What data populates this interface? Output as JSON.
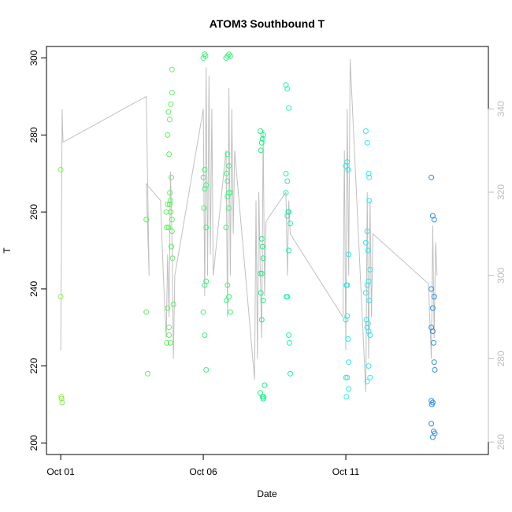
{
  "chart_data": {
    "type": "scatter",
    "title": "ATOM3 Southbound T",
    "xlabel": "Date",
    "ylabel": "T",
    "x_ticks": [
      "Oct 01",
      "Oct 06",
      "Oct 11"
    ],
    "x_tick_days": [
      1,
      6,
      11
    ],
    "xlim_days": [
      0.5,
      16.0
    ],
    "ylim": [
      197,
      303
    ],
    "y_ticks": [
      200,
      220,
      240,
      260,
      280,
      300
    ],
    "y2lim": [
      257,
      355
    ],
    "y2_ticks": [
      260,
      280,
      300,
      320,
      340
    ],
    "y2_color": "#bebebe",
    "series": [
      {
        "color": "#90ee50",
        "points": [
          [
            1.0,
            271
          ],
          [
            1.0,
            238
          ],
          [
            1.02,
            212
          ],
          [
            1.03,
            211.5
          ],
          [
            1.05,
            210.5
          ]
        ]
      },
      {
        "color": "#5ef05e",
        "points": [
          [
            4.0,
            258
          ],
          [
            4.0,
            234
          ],
          [
            4.05,
            218
          ],
          [
            4.75,
            280
          ],
          [
            4.78,
            286
          ],
          [
            4.8,
            275
          ],
          [
            4.7,
            260
          ],
          [
            4.72,
            256
          ],
          [
            4.75,
            235
          ],
          [
            4.8,
            230
          ],
          [
            4.72,
            226
          ],
          [
            4.8,
            228
          ],
          [
            4.85,
            226
          ],
          [
            4.82,
            284
          ],
          [
            4.86,
            288
          ],
          [
            4.9,
            297
          ],
          [
            4.9,
            291
          ],
          [
            4.88,
            269
          ],
          [
            4.85,
            263
          ],
          [
            4.9,
            258
          ],
          [
            4.78,
            256
          ],
          [
            4.82,
            262
          ],
          [
            4.95,
            236
          ],
          [
            4.88,
            251
          ],
          [
            4.92,
            248
          ],
          [
            4.75,
            262
          ],
          [
            4.86,
            260
          ],
          [
            4.9,
            255
          ],
          [
            4.83,
            265
          ]
        ]
      },
      {
        "color": "#3ef07a",
        "points": [
          [
            6.0,
            300
          ],
          [
            6.05,
            301
          ],
          [
            6.08,
            300.5
          ],
          [
            6.05,
            271
          ],
          [
            6.0,
            269
          ],
          [
            6.1,
            267
          ],
          [
            6.05,
            266
          ],
          [
            6.02,
            261
          ],
          [
            6.1,
            256
          ],
          [
            6.05,
            241
          ],
          [
            6.1,
            242
          ],
          [
            6.0,
            234
          ],
          [
            6.05,
            228
          ],
          [
            6.1,
            219
          ],
          [
            6.8,
            300
          ],
          [
            6.85,
            300.5
          ],
          [
            6.9,
            301
          ],
          [
            6.95,
            300.5
          ],
          [
            6.85,
            275
          ],
          [
            6.9,
            272
          ],
          [
            6.82,
            270
          ],
          [
            6.85,
            268
          ],
          [
            6.9,
            265
          ],
          [
            6.95,
            265
          ],
          [
            6.85,
            264
          ],
          [
            6.9,
            261
          ],
          [
            6.8,
            256
          ],
          [
            6.85,
            241
          ],
          [
            6.9,
            238
          ],
          [
            6.82,
            237
          ],
          [
            6.95,
            234
          ]
        ]
      },
      {
        "color": "#22ee88",
        "points": [
          [
            8.0,
            281
          ],
          [
            8.05,
            278
          ],
          [
            8.08,
            279
          ],
          [
            8.1,
            280
          ],
          [
            8.02,
            276
          ],
          [
            8.05,
            253
          ],
          [
            8.08,
            251
          ],
          [
            8.1,
            248
          ],
          [
            8.0,
            244
          ],
          [
            8.05,
            244
          ],
          [
            8.02,
            239
          ],
          [
            8.1,
            237
          ],
          [
            8.05,
            232
          ],
          [
            8.0,
            213
          ],
          [
            8.08,
            212
          ],
          [
            8.1,
            211.5
          ],
          [
            8.12,
            212
          ],
          [
            8.15,
            215
          ]
        ]
      },
      {
        "color": "#1ef0b4",
        "points": [
          [
            8.9,
            293
          ],
          [
            8.95,
            292
          ],
          [
            9.0,
            287
          ],
          [
            8.9,
            270
          ],
          [
            8.95,
            268
          ],
          [
            8.9,
            265
          ],
          [
            9.0,
            260
          ],
          [
            8.95,
            259
          ],
          [
            9.05,
            257
          ],
          [
            8.98,
            260
          ],
          [
            9.0,
            250
          ],
          [
            8.92,
            238
          ],
          [
            8.95,
            238
          ],
          [
            9.0,
            228
          ],
          [
            9.02,
            226
          ],
          [
            9.05,
            218
          ]
        ]
      },
      {
        "color": "#22eee0",
        "points": [
          [
            11.0,
            272
          ],
          [
            11.05,
            273
          ],
          [
            11.08,
            271
          ],
          [
            11.1,
            249
          ],
          [
            11.02,
            241
          ],
          [
            11.05,
            241
          ],
          [
            11.0,
            232
          ],
          [
            11.05,
            233
          ],
          [
            11.08,
            227
          ],
          [
            11.1,
            221
          ],
          [
            11.0,
            217
          ],
          [
            11.05,
            217
          ],
          [
            11.1,
            214
          ],
          [
            11.02,
            212
          ]
        ]
      },
      {
        "color": "#2ee6f0",
        "points": [
          [
            11.7,
            281
          ],
          [
            11.75,
            278
          ],
          [
            11.8,
            270
          ],
          [
            11.82,
            269
          ],
          [
            11.75,
            255
          ],
          [
            11.7,
            252
          ],
          [
            11.78,
            250
          ],
          [
            11.85,
            245
          ],
          [
            11.8,
            242
          ],
          [
            11.75,
            241
          ],
          [
            11.7,
            239
          ],
          [
            11.82,
            237
          ],
          [
            11.78,
            231
          ],
          [
            11.75,
            230
          ],
          [
            11.8,
            229
          ],
          [
            11.85,
            228
          ],
          [
            11.72,
            232
          ],
          [
            11.8,
            220
          ],
          [
            11.85,
            217
          ],
          [
            11.75,
            216
          ],
          [
            11.82,
            263
          ]
        ]
      },
      {
        "color": "#2b8ee8",
        "points": [
          [
            14.0,
            269
          ],
          [
            14.05,
            259
          ],
          [
            14.1,
            258
          ],
          [
            14.0,
            240
          ],
          [
            14.05,
            235
          ],
          [
            14.1,
            238
          ],
          [
            14.0,
            230
          ],
          [
            14.05,
            229
          ],
          [
            14.08,
            226
          ],
          [
            14.1,
            221
          ],
          [
            14.12,
            219
          ],
          [
            14.0,
            211
          ],
          [
            14.02,
            210
          ],
          [
            14.05,
            210.5
          ],
          [
            14.0,
            205
          ],
          [
            14.08,
            203
          ],
          [
            14.12,
            202.5
          ],
          [
            14.05,
            201.5
          ]
        ]
      }
    ],
    "line_series": {
      "axis": "right",
      "color": "#c0c0c0",
      "points": [
        [
          1.0,
          282
        ],
        [
          1.05,
          340
        ],
        [
          1.08,
          332
        ],
        [
          4.0,
          343
        ],
        [
          4.1,
          300
        ],
        [
          4.0,
          322
        ],
        [
          4.5,
          318
        ],
        [
          4.6,
          300
        ],
        [
          4.7,
          285
        ],
        [
          4.75,
          305
        ],
        [
          4.8,
          290
        ],
        [
          4.85,
          325
        ],
        [
          4.9,
          310
        ],
        [
          4.95,
          280
        ],
        [
          5.0,
          300
        ],
        [
          6.0,
          340
        ],
        [
          6.05,
          295
        ],
        [
          6.1,
          350
        ],
        [
          6.15,
          300
        ],
        [
          6.2,
          348
        ],
        [
          6.25,
          305
        ],
        [
          6.3,
          340
        ],
        [
          6.35,
          300
        ],
        [
          6.8,
          330
        ],
        [
          6.85,
          290
        ],
        [
          6.9,
          345
        ],
        [
          6.95,
          300
        ],
        [
          7.0,
          340
        ],
        [
          7.05,
          310
        ],
        [
          7.1,
          330
        ],
        [
          7.8,
          275
        ],
        [
          7.85,
          318
        ],
        [
          7.9,
          280
        ],
        [
          7.95,
          320
        ],
        [
          8.0,
          300
        ],
        [
          8.05,
          285
        ],
        [
          8.1,
          335
        ],
        [
          8.15,
          295
        ],
        [
          8.2,
          313
        ],
        [
          8.9,
          320
        ],
        [
          8.95,
          300
        ],
        [
          9.0,
          318
        ],
        [
          9.05,
          310
        ],
        [
          10.9,
          290
        ],
        [
          10.95,
          330
        ],
        [
          11.0,
          282
        ],
        [
          11.05,
          340
        ],
        [
          11.1,
          300
        ],
        [
          11.15,
          352
        ],
        [
          11.7,
          272
        ],
        [
          11.75,
          320
        ],
        [
          11.8,
          280
        ],
        [
          11.85,
          318
        ],
        [
          11.9,
          290
        ],
        [
          11.95,
          310
        ],
        [
          13.9,
          298
        ],
        [
          14.0,
          280
        ],
        [
          14.05,
          312
        ],
        [
          14.1,
          285
        ],
        [
          14.15,
          308
        ],
        [
          14.2,
          300
        ]
      ]
    },
    "grid": false,
    "legend": "none"
  }
}
